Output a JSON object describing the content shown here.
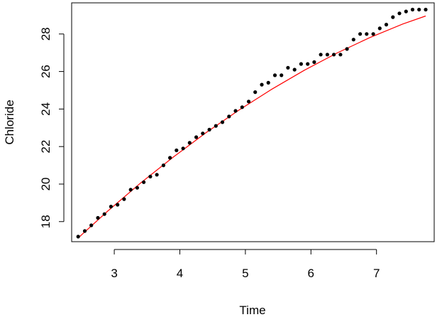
{
  "chart_data": {
    "type": "scatter",
    "title": "",
    "xlabel": "Time",
    "ylabel": "Chloride",
    "xlim": [
      2.35,
      7.88
    ],
    "ylim": [
      16.93,
      29.66
    ],
    "xticks": [
      3,
      4,
      5,
      6,
      7
    ],
    "yticks": [
      18,
      20,
      22,
      24,
      26,
      28
    ],
    "grid": false,
    "legend": "none",
    "colors": {
      "points": "#000000",
      "fit_line": "#ff0000",
      "axes": "#000000"
    },
    "series": [
      {
        "kind": "points",
        "x": [
          2.45,
          2.55,
          2.65,
          2.75,
          2.85,
          2.95,
          3.05,
          3.15,
          3.25,
          3.35,
          3.45,
          3.55,
          3.65,
          3.75,
          3.85,
          3.95,
          4.05,
          4.15,
          4.25,
          4.35,
          4.45,
          4.55,
          4.65,
          4.75,
          4.85,
          4.95,
          5.05,
          5.15,
          5.25,
          5.35,
          5.45,
          5.55,
          5.65,
          5.75,
          5.85,
          5.95,
          6.05,
          6.15,
          6.25,
          6.35,
          6.45,
          6.55,
          6.65,
          6.75,
          6.85,
          6.95,
          7.05,
          7.15,
          7.25,
          7.35,
          7.45,
          7.55,
          7.65,
          7.75
        ],
        "y": [
          17.2,
          17.5,
          17.8,
          18.2,
          18.4,
          18.8,
          18.9,
          19.2,
          19.7,
          19.8,
          20.1,
          20.4,
          20.5,
          21.0,
          21.4,
          21.8,
          21.9,
          22.2,
          22.5,
          22.7,
          22.9,
          23.1,
          23.3,
          23.6,
          23.9,
          24.1,
          24.4,
          24.9,
          25.3,
          25.4,
          25.8,
          25.8,
          26.2,
          26.1,
          26.4,
          26.4,
          26.5,
          26.9,
          26.9,
          26.9,
          26.9,
          27.2,
          27.7,
          28.0,
          28.0,
          28.0,
          28.3,
          28.5,
          28.9,
          29.1,
          29.2,
          29.3,
          29.3,
          29.3
        ]
      },
      {
        "kind": "fit-line",
        "x": [
          2.45,
          2.9,
          3.4,
          3.9,
          4.4,
          4.9,
          5.4,
          5.9,
          6.4,
          6.9,
          7.4,
          7.75
        ],
        "y": [
          17.13,
          18.56,
          20.05,
          21.44,
          22.74,
          23.94,
          25.05,
          26.07,
          26.99,
          27.81,
          28.53,
          28.96
        ]
      }
    ]
  }
}
